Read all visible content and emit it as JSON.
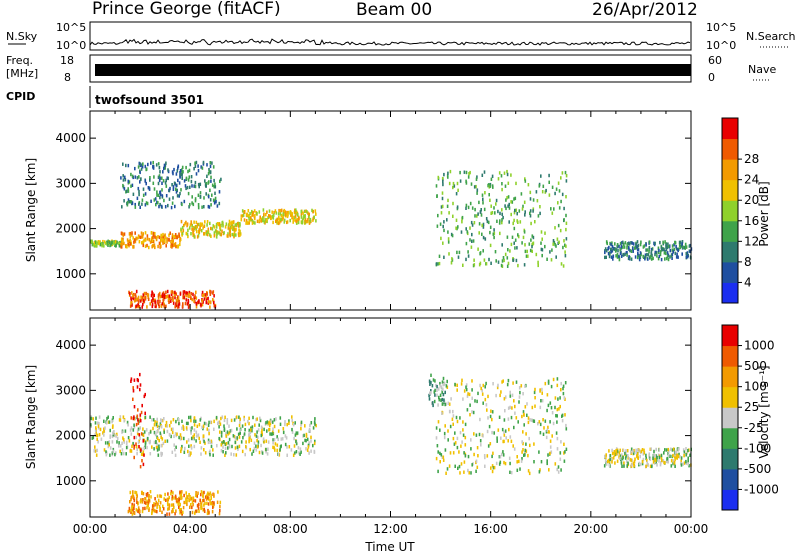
{
  "header": {
    "station": "Prince George (fitACF)",
    "beam": "Beam 00",
    "date": "26/Apr/2012"
  },
  "side_labels": {
    "nsky": "N.Sky",
    "nsearch": "N.Search",
    "freq_line1": "Freq.",
    "freq_line2": "[MHz]",
    "nave": "Nave",
    "cpid": "CPID"
  },
  "strip_ticks": {
    "nsky_top": "10^5",
    "nsky_bottom": "10^0",
    "nsearch_top": "10^5",
    "nsearch_bottom": "10^0",
    "freq_top": "18",
    "freq_bottom": "8",
    "nave_top": "60",
    "nave_bottom": "0"
  },
  "cpid_label": "twofsound 3501",
  "chart_data": [
    {
      "type": "heatmap",
      "panel": "power",
      "xlabel": "",
      "ylabel": "Slant Range [km]",
      "ylim": [
        200,
        4600
      ],
      "yticks": [
        "1000",
        "2000",
        "3000",
        "4000"
      ],
      "xlim": [
        0,
        24
      ],
      "colorbar": {
        "label": "Power [dB]",
        "ticks": [
          "4",
          "8",
          "12",
          "16",
          "20",
          "24",
          "28"
        ],
        "colors": [
          "#1b2ef0",
          "#1f4fa0",
          "#2e7a6e",
          "#3fa34a",
          "#8fd12b",
          "#f0c000",
          "#f39a00",
          "#ef5a00",
          "#e80000"
        ]
      },
      "features": [
        {
          "t0": 0.0,
          "t1": 1.2,
          "r0": 1650,
          "r1": 1760,
          "level": 4
        },
        {
          "t0": 1.2,
          "t1": 3.6,
          "r0": 1620,
          "r1": 1950,
          "level": 6
        },
        {
          "t0": 3.6,
          "t1": 6.0,
          "r0": 1850,
          "r1": 2200,
          "level": 5
        },
        {
          "t0": 6.0,
          "t1": 9.0,
          "r0": 2150,
          "r1": 2450,
          "level": 5
        },
        {
          "t0": 1.5,
          "t1": 5.0,
          "r0": 300,
          "r1": 650,
          "level": 7
        },
        {
          "t0": 1.2,
          "t1": 5.2,
          "r0": 2500,
          "r1": 3500,
          "level": 2
        },
        {
          "t0": 13.8,
          "t1": 19.0,
          "r0": 1200,
          "r1": 3300,
          "level": 3
        },
        {
          "t0": 20.5,
          "t1": 24.0,
          "r0": 1350,
          "r1": 1750,
          "level": 2
        }
      ]
    },
    {
      "type": "heatmap",
      "panel": "velocity",
      "xlabel": "Time UT",
      "ylabel": "Slant Range [km]",
      "ylim": [
        200,
        4600
      ],
      "yticks": [
        "1000",
        "2000",
        "3000",
        "4000"
      ],
      "xlim": [
        0,
        24
      ],
      "xticks": [
        "00:00",
        "04:00",
        "08:00",
        "12:00",
        "16:00",
        "20:00",
        "00:00"
      ],
      "colorbar": {
        "label": "Velocity [m s⁻¹]",
        "ticks": [
          "1000",
          "500",
          "100",
          "25",
          "-25",
          "-100",
          "-500",
          "-1000"
        ],
        "colors": [
          "#1b2ef0",
          "#1f4fa0",
          "#2e7a6e",
          "#3fa34a",
          "#c8c8c8",
          "#f0c000",
          "#f39a00",
          "#ef5a00",
          "#e80000"
        ]
      },
      "features": [
        {
          "t0": 0.0,
          "t1": 9.0,
          "r0": 1600,
          "r1": 2450,
          "level": 4
        },
        {
          "t0": 1.5,
          "t1": 5.2,
          "r0": 300,
          "r1": 800,
          "level": 6
        },
        {
          "t0": 1.6,
          "t1": 2.2,
          "r0": 1300,
          "r1": 3400,
          "level": 8
        },
        {
          "t0": 13.8,
          "t1": 19.0,
          "r0": 1200,
          "r1": 3300,
          "level": 4
        },
        {
          "t0": 20.5,
          "t1": 24.0,
          "r0": 1350,
          "r1": 1750,
          "level": 4
        },
        {
          "t0": 13.5,
          "t1": 14.2,
          "r0": 2700,
          "r1": 3400,
          "level": 3
        }
      ]
    }
  ]
}
